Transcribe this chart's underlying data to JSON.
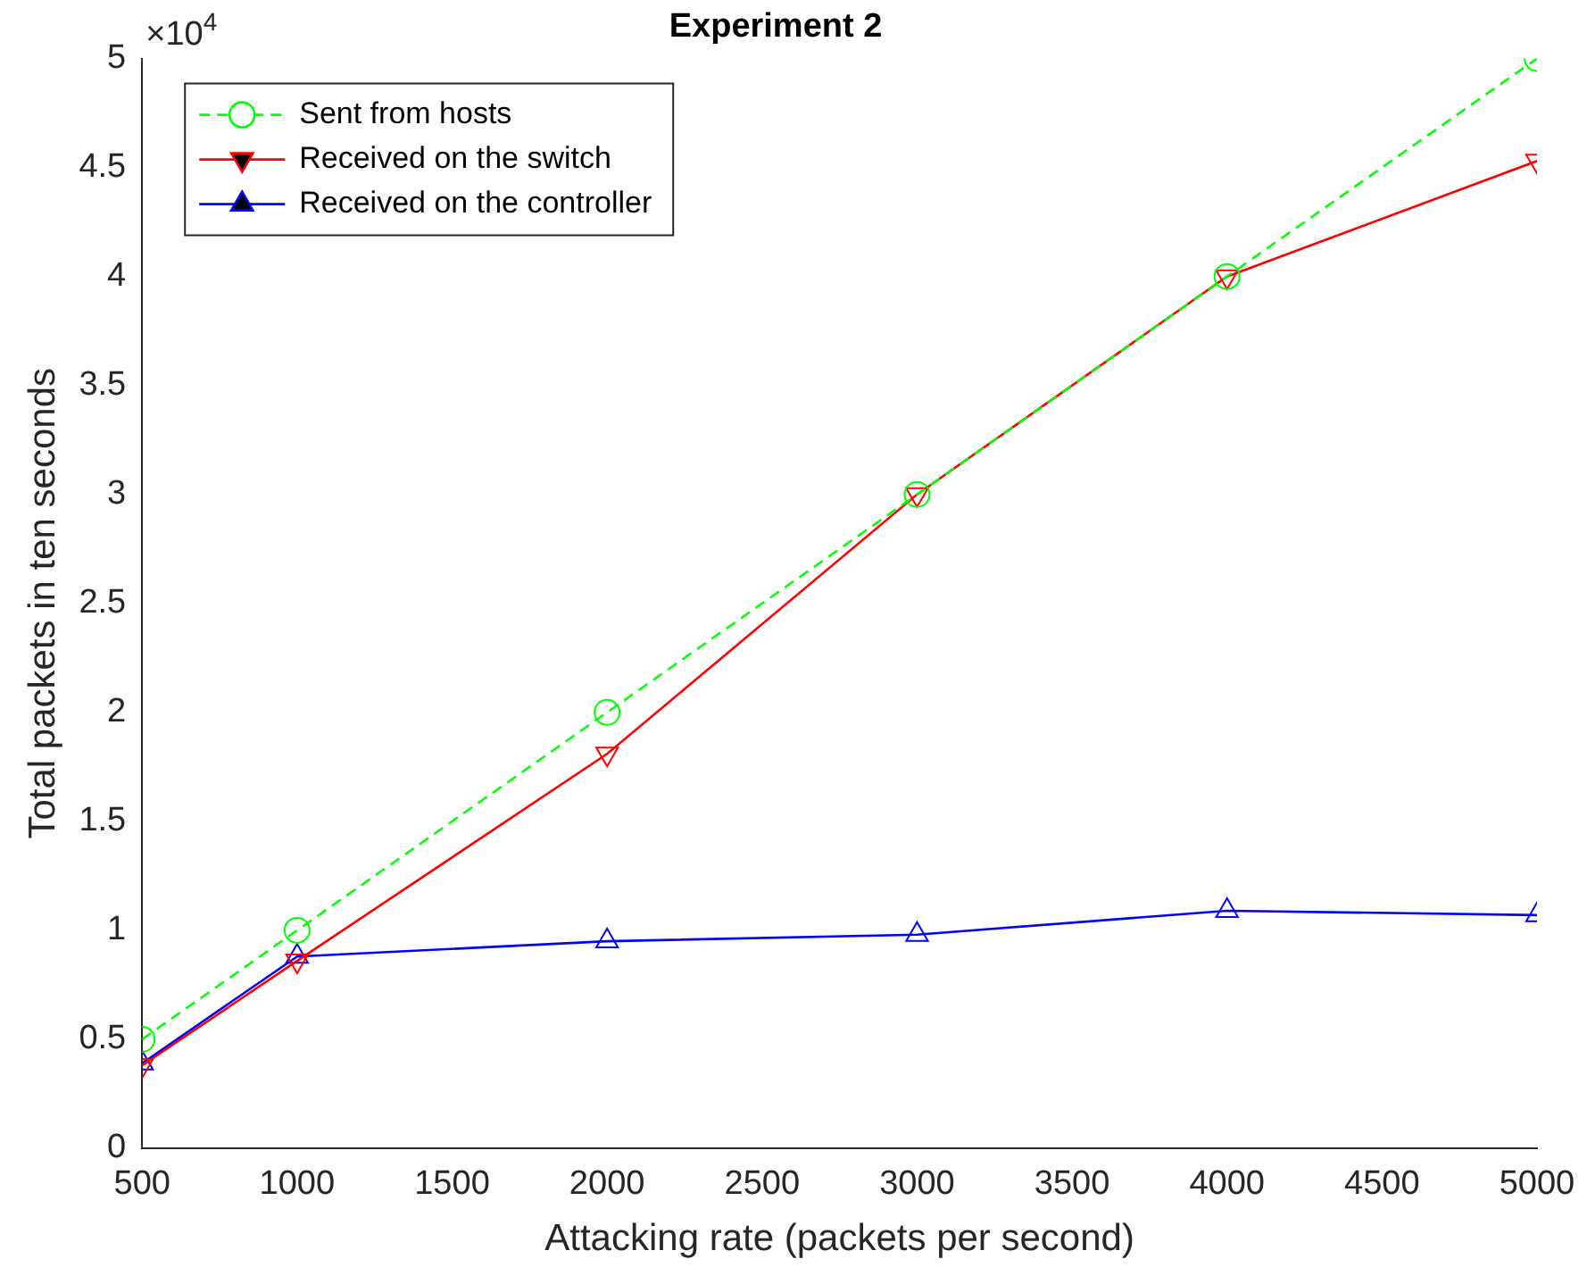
{
  "chart_data": {
    "type": "line",
    "title": "Experiment 2",
    "xlabel": "Attacking rate (packets per second)",
    "ylabel": "Total packets in ten seconds",
    "x": [
      500,
      1000,
      2000,
      3000,
      4000,
      5000
    ],
    "xlim": [
      500,
      5000
    ],
    "xticks": [
      500,
      1000,
      1500,
      2000,
      2500,
      3000,
      3500,
      4000,
      4500,
      5000
    ],
    "ylim": [
      0,
      5
    ],
    "yticks": [
      0,
      0.5,
      1,
      1.5,
      2,
      2.5,
      3,
      3.5,
      4,
      4.5,
      5
    ],
    "annotations": [
      "×10$^{4}$"
    ],
    "legend": "top left",
    "grid": false,
    "series": [
      {
        "name": "Sent from hosts",
        "color": "#00ff00",
        "values": [
          0.5,
          1,
          2,
          3,
          4,
          5
        ],
        "marker": "circle",
        "line_style": "dashed"
      },
      {
        "name": "Received on the switch",
        "color": "#ff0000",
        "values": [
          0.38,
          0.86,
          1.81,
          3.0,
          4.0,
          4.53
        ],
        "marker": "triangle-down",
        "line_style": "solid"
      },
      {
        "name": "Received on the controller",
        "color": "#0000ff",
        "values": [
          0.39,
          0.88,
          0.95,
          0.98,
          1.09,
          1.07
        ],
        "marker": "triangle",
        "line_style": "solid"
      }
    ]
  }
}
